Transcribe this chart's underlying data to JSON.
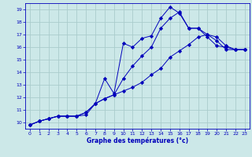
{
  "xlabel": "Graphe des températures (°c)",
  "bg_color": "#cce8e8",
  "grid_color": "#aacccc",
  "line_color": "#0000bb",
  "xlim": [
    -0.5,
    23.5
  ],
  "ylim": [
    9.5,
    19.5
  ],
  "xticks": [
    0,
    1,
    2,
    3,
    4,
    5,
    6,
    7,
    8,
    9,
    10,
    11,
    12,
    13,
    14,
    15,
    16,
    17,
    18,
    19,
    20,
    21,
    22,
    23
  ],
  "yticks": [
    10,
    11,
    12,
    13,
    14,
    15,
    16,
    17,
    18,
    19
  ],
  "line1_x": [
    0,
    1,
    2,
    3,
    4,
    5,
    6,
    7,
    8,
    9,
    10,
    11,
    12,
    13,
    14,
    15,
    16,
    17,
    18,
    19,
    20,
    21,
    22,
    23
  ],
  "line1_y": [
    9.8,
    10.1,
    10.3,
    10.5,
    10.5,
    10.5,
    10.6,
    11.5,
    13.5,
    12.3,
    16.3,
    16.0,
    16.7,
    16.9,
    18.3,
    19.2,
    18.7,
    17.5,
    17.5,
    16.8,
    16.1,
    16.0,
    15.8,
    15.8
  ],
  "line2_x": [
    0,
    1,
    2,
    3,
    4,
    5,
    6,
    7,
    8,
    9,
    10,
    11,
    12,
    13,
    14,
    15,
    16,
    17,
    18,
    19,
    20,
    21,
    22,
    23
  ],
  "line2_y": [
    9.8,
    10.1,
    10.3,
    10.5,
    10.5,
    10.5,
    10.8,
    11.5,
    11.9,
    12.2,
    13.5,
    14.5,
    15.3,
    16.0,
    17.5,
    18.3,
    18.8,
    17.5,
    17.5,
    17.0,
    16.8,
    16.1,
    15.8,
    15.8
  ],
  "line3_x": [
    0,
    1,
    2,
    3,
    4,
    5,
    6,
    7,
    8,
    9,
    10,
    11,
    12,
    13,
    14,
    15,
    16,
    17,
    18,
    19,
    20,
    21,
    22,
    23
  ],
  "line3_y": [
    9.8,
    10.1,
    10.3,
    10.5,
    10.5,
    10.5,
    10.8,
    11.5,
    11.9,
    12.2,
    12.5,
    12.8,
    13.2,
    13.8,
    14.3,
    15.2,
    15.7,
    16.2,
    16.8,
    17.0,
    16.5,
    15.8,
    15.8,
    15.8
  ]
}
